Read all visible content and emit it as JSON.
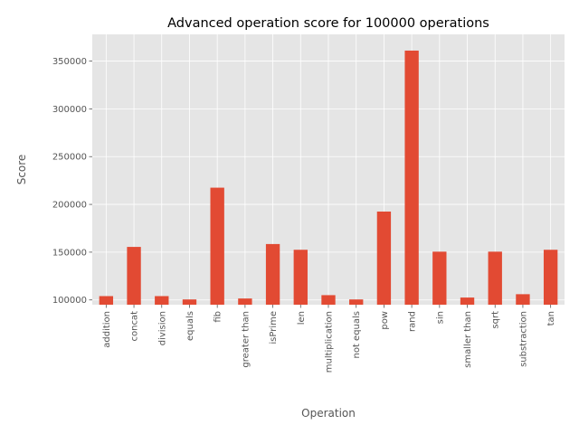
{
  "chart_data": {
    "type": "bar",
    "title": "Advanced operation score for 100000 operations",
    "xlabel": "Operation",
    "ylabel": "Score",
    "categories": [
      "addition",
      "concat",
      "division",
      "equals",
      "fib",
      "greater than",
      "isPrime",
      "len",
      "multiplication",
      "not equals",
      "pow",
      "rand",
      "sin",
      "smaller than",
      "sqrt",
      "substraction",
      "tan"
    ],
    "values": [
      104000,
      155500,
      104000,
      100500,
      217500,
      101500,
      158500,
      152500,
      105000,
      100500,
      192500,
      361000,
      150500,
      102500,
      150500,
      106000,
      152500
    ],
    "ylim": [
      95000,
      378000
    ],
    "yticks": [
      100000,
      150000,
      200000,
      250000,
      300000,
      350000
    ],
    "ytick_labels": [
      "100000",
      "150000",
      "200000",
      "250000",
      "300000",
      "350000"
    ],
    "grid": true,
    "style": "ggplot",
    "colors": {
      "bar": "#E24A33",
      "plot_bg": "#E5E5E5",
      "grid": "#FFFFFF",
      "text": "#555555"
    }
  }
}
